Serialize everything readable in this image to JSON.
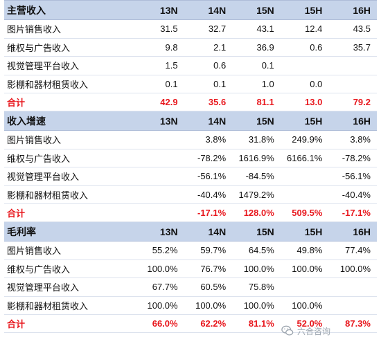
{
  "sections": [
    {
      "title": "主营收入",
      "columns": [
        "13N",
        "14N",
        "15N",
        "15H",
        "16H"
      ],
      "rows": [
        {
          "label": "图片销售收入",
          "values": [
            "31.5",
            "32.7",
            "43.1",
            "12.4",
            "43.5"
          ]
        },
        {
          "label": "维权与广告收入",
          "values": [
            "9.8",
            "2.1",
            "36.9",
            "0.6",
            "35.7"
          ]
        },
        {
          "label": "视觉管理平台收入",
          "values": [
            "1.5",
            "0.6",
            "0.1",
            "",
            ""
          ]
        },
        {
          "label": "影棚和器材租赁收入",
          "values": [
            "0.1",
            "0.1",
            "1.0",
            "0.0",
            ""
          ]
        }
      ],
      "total": {
        "label": "合计",
        "values": [
          "42.9",
          "35.6",
          "81.1",
          "13.0",
          "79.2"
        ]
      }
    },
    {
      "title": "收入增速",
      "columns": [
        "13N",
        "14N",
        "15N",
        "15H",
        "16H"
      ],
      "rows": [
        {
          "label": "图片销售收入",
          "values": [
            "",
            "3.8%",
            "31.8%",
            "249.9%",
            "3.8%"
          ]
        },
        {
          "label": "维权与广告收入",
          "values": [
            "",
            "-78.2%",
            "1616.9%",
            "6166.1%",
            "-78.2%"
          ]
        },
        {
          "label": "视觉管理平台收入",
          "values": [
            "",
            "-56.1%",
            "-84.5%",
            "",
            "-56.1%"
          ]
        },
        {
          "label": "影棚和器材租赁收入",
          "values": [
            "",
            "-40.4%",
            "1479.2%",
            "",
            "-40.4%"
          ]
        }
      ],
      "total": {
        "label": "合计",
        "values": [
          "",
          "-17.1%",
          "128.0%",
          "509.5%",
          "-17.1%"
        ]
      }
    },
    {
      "title": "毛利率",
      "columns": [
        "13N",
        "14N",
        "15N",
        "15H",
        "16H"
      ],
      "rows": [
        {
          "label": "图片销售收入",
          "values": [
            "55.2%",
            "59.7%",
            "64.5%",
            "49.8%",
            "77.4%"
          ]
        },
        {
          "label": "维权与广告收入",
          "values": [
            "100.0%",
            "76.7%",
            "100.0%",
            "100.0%",
            "100.0%"
          ]
        },
        {
          "label": "视觉管理平台收入",
          "values": [
            "67.7%",
            "60.5%",
            "75.8%",
            "",
            ""
          ]
        },
        {
          "label": "影棚和器材租赁收入",
          "values": [
            "100.0%",
            "100.0%",
            "100.0%",
            "100.0%",
            ""
          ]
        }
      ],
      "total": {
        "label": "合计",
        "values": [
          "66.0%",
          "62.2%",
          "81.1%",
          "52.0%",
          "87.3%"
        ]
      }
    }
  ],
  "watermark": {
    "text": "六合咨询",
    "icon": "wechat-icon"
  },
  "colors": {
    "header_bg": "#c6d4ea",
    "total_text": "#e8171d",
    "text": "#111111"
  }
}
